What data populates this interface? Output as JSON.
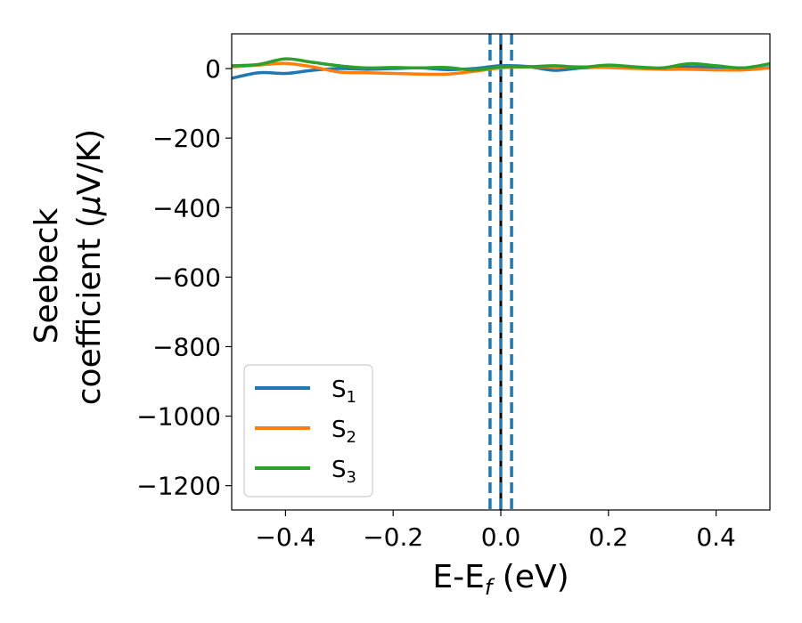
{
  "chart_data": {
    "type": "line",
    "title": "",
    "xlabel": "E-E_f (eV)",
    "xlabel_parts": {
      "base": "E-E",
      "sub": "f",
      "unit": " (eV)"
    },
    "ylabel_lines": [
      "Seebeck",
      "coefficient  (μV/K)"
    ],
    "ylabel_parts": {
      "line1": "Seebeck",
      "line2_text": "coefficient  (",
      "line2_symbol": "μ",
      "line2_unit": "V/K)"
    },
    "xlim": [
      -0.5,
      0.5
    ],
    "ylim": [
      -1270,
      100
    ],
    "xticks": [
      -0.4,
      -0.2,
      0.0,
      0.2,
      0.4
    ],
    "xtick_labels": [
      "−0.4",
      "−0.2",
      "0.0",
      "0.2",
      "0.4"
    ],
    "yticks": [
      0,
      -200,
      -400,
      -600,
      -800,
      -1000,
      -1200
    ],
    "ytick_labels": [
      "0",
      "−200",
      "−400",
      "−600",
      "−800",
      "−1000",
      "−1200"
    ],
    "grid": false,
    "legend_position": "lower-left",
    "vlines": [
      {
        "x": 0.0,
        "color": "#000000",
        "style": "solid"
      },
      {
        "x": -0.02,
        "color": "#1f77b4",
        "style": "dashed"
      },
      {
        "x": 0.0,
        "color": "#1f77b4",
        "style": "dashed"
      },
      {
        "x": 0.02,
        "color": "#1f77b4",
        "style": "dashed"
      }
    ],
    "x": [
      -0.5,
      -0.45,
      -0.4,
      -0.35,
      -0.3,
      -0.25,
      -0.2,
      -0.15,
      -0.1,
      -0.05,
      0.0,
      0.05,
      0.1,
      0.15,
      0.2,
      0.25,
      0.3,
      0.35,
      0.4,
      0.45,
      0.5
    ],
    "series": [
      {
        "name": "S",
        "sub": "1",
        "color": "#1f77b4",
        "values": [
          -28,
          -12,
          -14,
          -5,
          0,
          -2,
          0,
          2,
          -3,
          0,
          8,
          6,
          -5,
          2,
          5,
          3,
          0,
          5,
          2,
          -2,
          3
        ]
      },
      {
        "name": "S",
        "sub": "2",
        "color": "#ff7f0e",
        "values": [
          5,
          10,
          15,
          5,
          -10,
          -12,
          -14,
          -16,
          -16,
          -8,
          2,
          5,
          5,
          5,
          3,
          0,
          -2,
          -2,
          -4,
          -4,
          2
        ]
      },
      {
        "name": "S",
        "sub": "3",
        "color": "#2ca02c",
        "values": [
          8,
          12,
          28,
          18,
          8,
          2,
          3,
          2,
          3,
          -4,
          5,
          5,
          8,
          4,
          10,
          5,
          2,
          14,
          8,
          2,
          14
        ]
      }
    ]
  }
}
